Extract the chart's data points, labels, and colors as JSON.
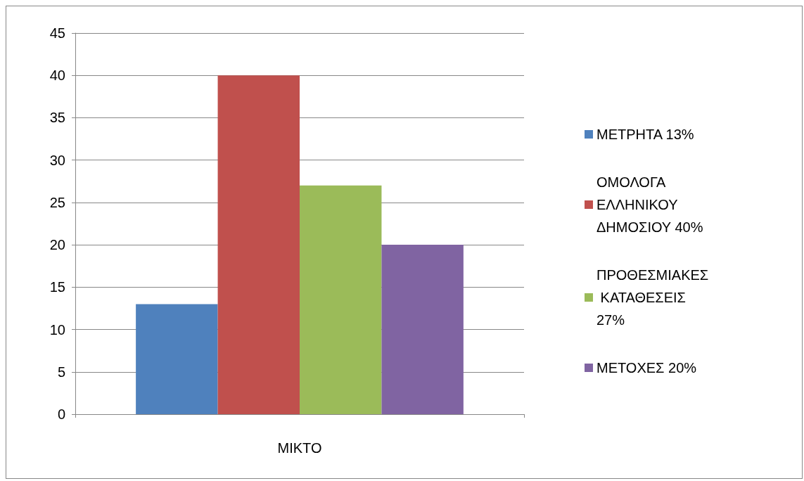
{
  "chart_data": {
    "type": "bar",
    "categories": [
      "ΜΙΚΤΟ"
    ],
    "series": [
      {
        "name": "ΜΕΤΡΗΤΑ 13%",
        "color": "#4f81bd",
        "values": [
          13
        ]
      },
      {
        "name": "ΟΜΟΛΟΓΑ ΕΛΛΗΝΙΚΟΥ ΔΗΜΟΣΙΟΥ 40%",
        "color": "#c0504d",
        "values": [
          40
        ]
      },
      {
        "name": "ΠΡΟΘΕΣΜΙΑΚΕΣ ΚΑΤΑΘΕΣΕΙΣ 27%",
        "color": "#9bbb59",
        "values": [
          27
        ]
      },
      {
        "name": "ΜΕΤΟΧΕΣ 20%",
        "color": "#8064a2",
        "values": [
          20
        ]
      }
    ],
    "ylim": [
      0,
      45
    ],
    "yticks": [
      0,
      5,
      10,
      15,
      20,
      25,
      30,
      35,
      40,
      45
    ],
    "grid": "y",
    "legend": "right"
  }
}
